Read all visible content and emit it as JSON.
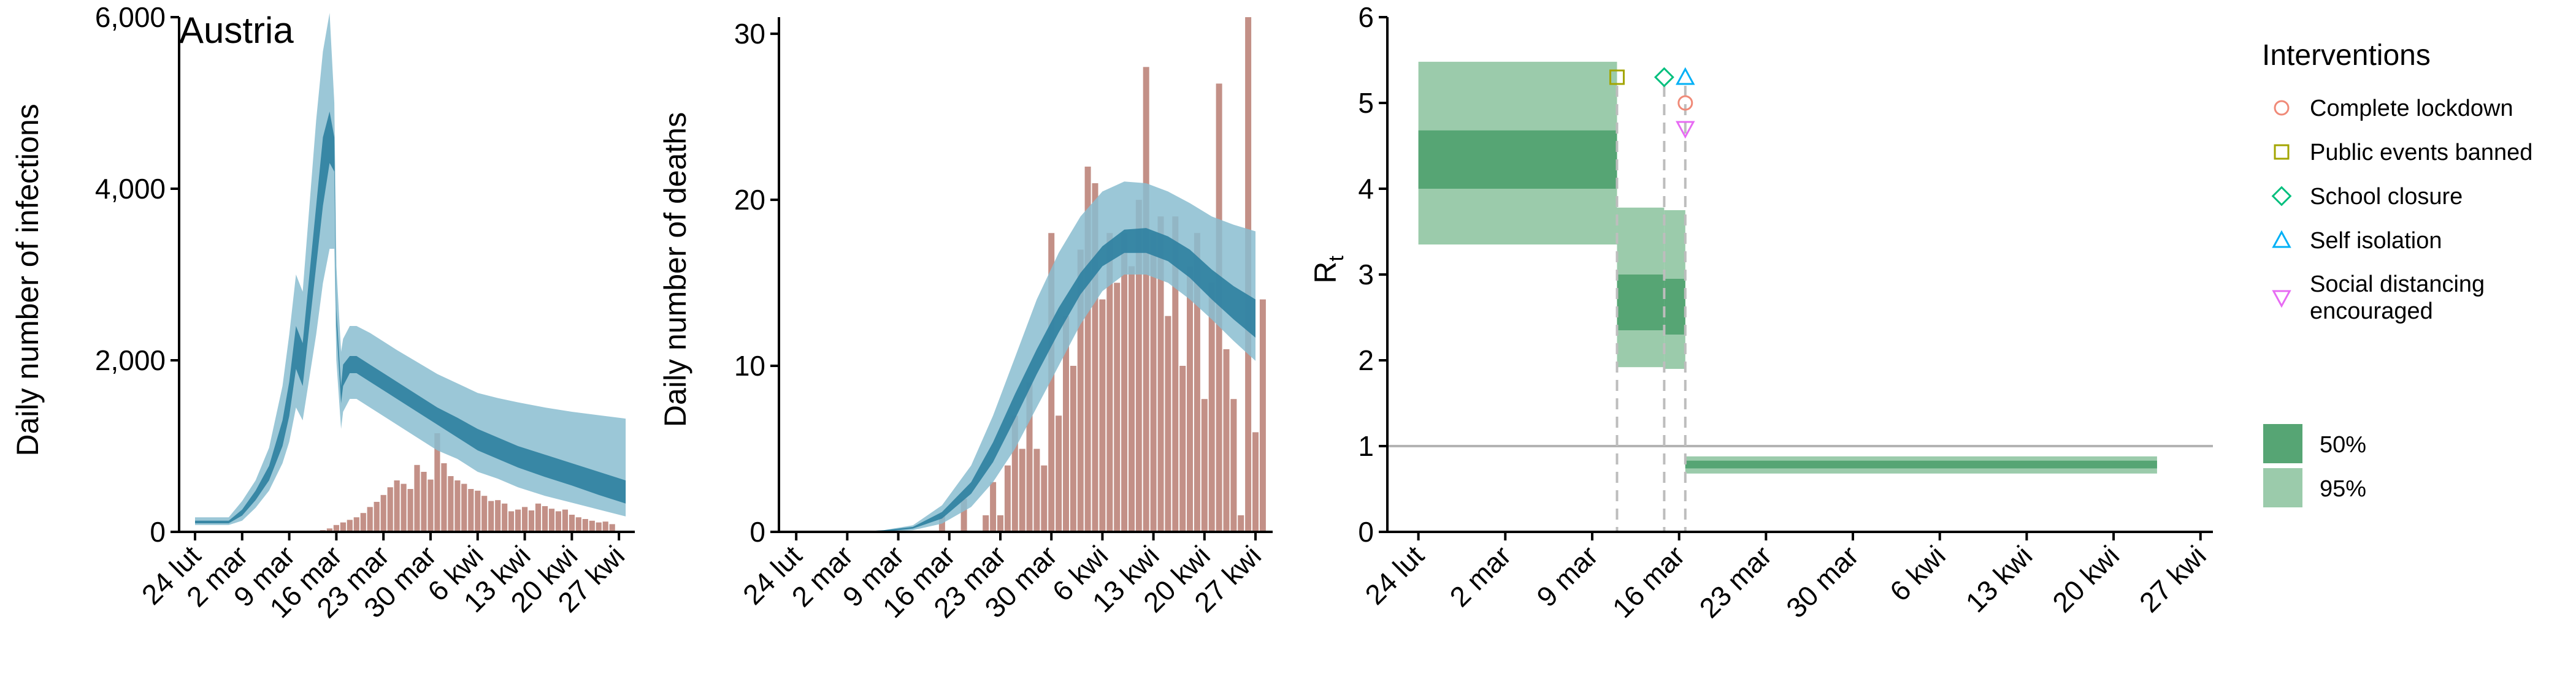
{
  "chart_data": [
    {
      "type": "bar",
      "title": "Austria",
      "xlabel": "",
      "ylabel": "Daily number of infections",
      "ylim": [
        0,
        6000
      ],
      "xlim_days": [
        0,
        64
      ],
      "x_ticks": [
        {
          "day": 0,
          "label": "24 lut"
        },
        {
          "day": 7,
          "label": "2 mar"
        },
        {
          "day": 14,
          "label": "9 mar"
        },
        {
          "day": 21,
          "label": "16 mar"
        },
        {
          "day": 28,
          "label": "23 mar"
        },
        {
          "day": 35,
          "label": "30 mar"
        },
        {
          "day": 42,
          "label": "6 kwi"
        },
        {
          "day": 49,
          "label": "13 kwi"
        },
        {
          "day": 56,
          "label": "20 kwi"
        },
        {
          "day": 63,
          "label": "27 kwi"
        }
      ],
      "y_ticks": [
        {
          "value": 0,
          "label": "0"
        },
        {
          "value": 2000,
          "label": "2,000"
        },
        {
          "value": 4000,
          "label": "4,000"
        },
        {
          "value": 6000,
          "label": "6,000"
        }
      ],
      "bar_start_day": 17,
      "bars": [
        5,
        10,
        20,
        40,
        80,
        110,
        140,
        170,
        220,
        290,
        350,
        430,
        520,
        600,
        560,
        500,
        780,
        700,
        610,
        1150,
        800,
        650,
        600,
        560,
        500,
        480,
        420,
        360,
        370,
        330,
        240,
        260,
        290,
        250,
        330,
        300,
        270,
        240,
        260,
        200,
        170,
        150,
        130,
        110,
        120,
        90
      ],
      "band_color_50": "#2d7fa0",
      "band_color_95": "#89bdd0",
      "bar_color": "#b87c72",
      "bands": {
        "day": [
          0,
          5,
          7,
          9,
          11,
          13,
          14,
          15,
          16,
          17,
          18,
          19,
          20,
          20.7,
          21,
          21.7,
          22,
          23,
          24,
          26,
          28,
          30,
          33,
          36,
          39,
          42,
          45,
          48,
          52,
          56,
          60,
          64
        ],
        "low95": [
          80,
          80,
          130,
          280,
          480,
          800,
          1050,
          1450,
          1300,
          1800,
          2300,
          2900,
          3300,
          3300,
          2000,
          1200,
          1400,
          1550,
          1550,
          1450,
          1350,
          1250,
          1100,
          950,
          850,
          700,
          620,
          520,
          420,
          340,
          260,
          180
        ],
        "low50": [
          100,
          100,
          190,
          370,
          600,
          1000,
          1350,
          1900,
          1700,
          2400,
          3100,
          3800,
          4300,
          4200,
          2400,
          1500,
          1700,
          1850,
          1850,
          1750,
          1650,
          1550,
          1400,
          1250,
          1100,
          950,
          850,
          750,
          640,
          540,
          430,
          330
        ],
        "high50": [
          130,
          130,
          260,
          480,
          770,
          1300,
          1750,
          2400,
          2200,
          3000,
          3800,
          4600,
          4900,
          4600,
          2600,
          1700,
          1950,
          2050,
          2050,
          1950,
          1850,
          1750,
          1600,
          1450,
          1330,
          1200,
          1100,
          1000,
          900,
          800,
          700,
          600
        ],
        "high95": [
          170,
          170,
          360,
          600,
          980,
          1700,
          2300,
          3000,
          2800,
          3800,
          4800,
          5600,
          6050,
          5000,
          3100,
          2100,
          2250,
          2400,
          2400,
          2320,
          2220,
          2120,
          1980,
          1840,
          1730,
          1620,
          1560,
          1510,
          1450,
          1400,
          1360,
          1320
        ]
      }
    },
    {
      "type": "bar",
      "title": "",
      "xlabel": "",
      "ylabel": "Daily number of deaths",
      "ylim": [
        0,
        31
      ],
      "xlim_days": [
        0,
        64
      ],
      "x_ticks": [
        {
          "day": 0,
          "label": "24 lut"
        },
        {
          "day": 7,
          "label": "2 mar"
        },
        {
          "day": 14,
          "label": "9 mar"
        },
        {
          "day": 21,
          "label": "16 mar"
        },
        {
          "day": 28,
          "label": "23 mar"
        },
        {
          "day": 35,
          "label": "30 mar"
        },
        {
          "day": 42,
          "label": "6 kwi"
        },
        {
          "day": 49,
          "label": "13 kwi"
        },
        {
          "day": 56,
          "label": "20 kwi"
        },
        {
          "day": 63,
          "label": "27 kwi"
        }
      ],
      "y_ticks": [
        {
          "value": 0,
          "label": "0"
        },
        {
          "value": 10,
          "label": "10"
        },
        {
          "value": 20,
          "label": "20"
        },
        {
          "value": 30,
          "label": "30"
        }
      ],
      "bar_start_day": 20,
      "bars": [
        1,
        0,
        0,
        2,
        0,
        0,
        1,
        3,
        1,
        4,
        7,
        5,
        9,
        5,
        4,
        18,
        7,
        13,
        10,
        17,
        22,
        21,
        14,
        18,
        15,
        18,
        16,
        20,
        28,
        18,
        19,
        13,
        19,
        10,
        16,
        18,
        8,
        15,
        27,
        11,
        8,
        1,
        31,
        6,
        14
      ],
      "band_color_50": "#2d7fa0",
      "band_color_95": "#89bdd0",
      "bar_color": "#b87c72",
      "bands": {
        "day": [
          0,
          4,
          8,
          12,
          16,
          20,
          24,
          27,
          30,
          33,
          36,
          39,
          42,
          45,
          48,
          51,
          54,
          57,
          60,
          63
        ],
        "low95": [
          0,
          0,
          0,
          0,
          0.1,
          0.5,
          1.5,
          3,
          5,
          7.5,
          10,
          12.5,
          14.5,
          15.5,
          15.5,
          15,
          14,
          12.8,
          11.5,
          10.3
        ],
        "low50": [
          0,
          0,
          0,
          0,
          0.2,
          0.8,
          2.3,
          4.2,
          6.8,
          9.5,
          12,
          14.3,
          16,
          16.8,
          16.8,
          16.3,
          15.3,
          14,
          12.8,
          11.7
        ],
        "high50": [
          0,
          0,
          0,
          0.1,
          0.3,
          1.2,
          3,
          5.4,
          8.3,
          11,
          13.5,
          15.6,
          17.2,
          18.2,
          18.3,
          17.8,
          17,
          15.8,
          14.8,
          14
        ],
        "high95": [
          0,
          0,
          0,
          0.1,
          0.4,
          1.6,
          4,
          7,
          10.5,
          14,
          16.8,
          19,
          20.5,
          21.1,
          21,
          20.5,
          19.8,
          19,
          18.5,
          18.1
        ]
      }
    },
    {
      "type": "area",
      "title": "",
      "xlabel": "",
      "ylabel": "R",
      "ylabel_subscript": "t",
      "ylim": [
        0,
        6
      ],
      "xlim_days": [
        -2.5,
        64
      ],
      "x_ticks": [
        {
          "day": 0,
          "label": "24 lut"
        },
        {
          "day": 7,
          "label": "2 mar"
        },
        {
          "day": 14,
          "label": "9 mar"
        },
        {
          "day": 21,
          "label": "16 mar"
        },
        {
          "day": 28,
          "label": "23 mar"
        },
        {
          "day": 35,
          "label": "30 mar"
        },
        {
          "day": 42,
          "label": "6 kwi"
        },
        {
          "day": 49,
          "label": "13 kwi"
        },
        {
          "day": 56,
          "label": "20 kwi"
        },
        {
          "day": 63,
          "label": "27 kwi"
        }
      ],
      "y_ticks": [
        {
          "value": 0,
          "label": "0"
        },
        {
          "value": 1,
          "label": "1"
        },
        {
          "value": 2,
          "label": "2"
        },
        {
          "value": 3,
          "label": "3"
        },
        {
          "value": 4,
          "label": "4"
        },
        {
          "value": 5,
          "label": "5"
        },
        {
          "value": 6,
          "label": "6"
        }
      ],
      "reference_line": 1,
      "steps": [
        {
          "start_day": 0,
          "end_day": 16,
          "low95": 3.35,
          "high95": 5.48,
          "low50": 4.0,
          "high50": 4.68
        },
        {
          "start_day": 16,
          "end_day": 19.8,
          "low95": 1.92,
          "high95": 3.78,
          "low50": 2.35,
          "high50": 3.0
        },
        {
          "start_day": 19.8,
          "end_day": 21.5,
          "low95": 1.9,
          "high95": 3.75,
          "low50": 2.3,
          "high50": 2.95
        },
        {
          "start_day": 21.5,
          "end_day": 59.5,
          "low95": 0.68,
          "high95": 0.88,
          "low50": 0.74,
          "high50": 0.83
        }
      ],
      "interventions": [
        {
          "name": "Complete lockdown",
          "day": 21.5,
          "marker": "circle",
          "color": "#f08a78",
          "y": 5.0
        },
        {
          "name": "Public events banned",
          "day": 16,
          "marker": "square",
          "color": "#a3a500",
          "y": 5.3
        },
        {
          "name": "School closure",
          "day": 19.8,
          "marker": "diamond",
          "color": "#00bf7d",
          "y": 5.3
        },
        {
          "name": "Self isolation",
          "day": 21.5,
          "marker": "triangle-up",
          "color": "#00b0f6",
          "y": 5.3
        },
        {
          "name": "Social distancing encouraged",
          "day": 21.5,
          "marker": "triangle-down",
          "color": "#e76bf3",
          "y": 4.7
        }
      ],
      "legend": {
        "title": "Interventions",
        "items": [
          {
            "label": "Complete lockdown",
            "marker": "circle",
            "color": "#f08a78"
          },
          {
            "label": "Public events banned",
            "marker": "square",
            "color": "#a3a500"
          },
          {
            "label": "School closure",
            "marker": "diamond",
            "color": "#00bf7d"
          },
          {
            "label": "Self isolation",
            "marker": "triangle-up",
            "color": "#00b0f6"
          },
          {
            "label": "Social distancing",
            "label2": " encouraged",
            "marker": "triangle-down",
            "color": "#e76bf3"
          }
        ],
        "bands": [
          {
            "label": "50%",
            "color": "#56a574"
          },
          {
            "label": "95%",
            "color": "#9bcbab"
          }
        ]
      },
      "band_color_50": "#56a574",
      "band_color_95": "#9bcbab"
    }
  ]
}
